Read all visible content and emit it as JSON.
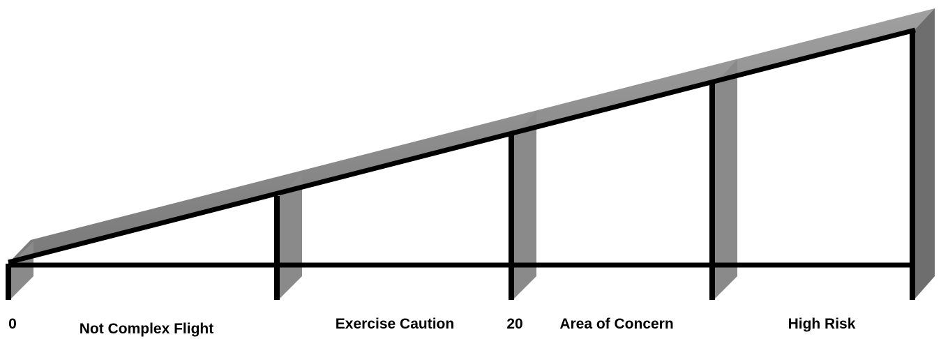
{
  "scale": {
    "ticks": [
      "0",
      "20"
    ],
    "zones": [
      "Not Complex Flight",
      "Exercise Caution",
      "Area of Concern",
      "High Risk"
    ]
  }
}
